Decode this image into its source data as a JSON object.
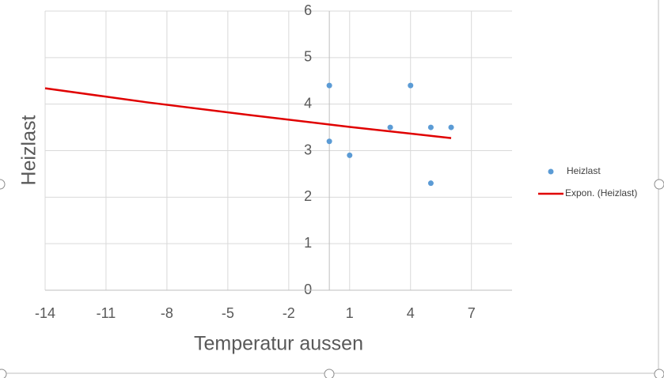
{
  "chart_data": {
    "type": "scatter",
    "x_label": "Temperatur aussen",
    "y_label": "Heizlast",
    "xlim": [
      -14,
      9
    ],
    "xticks": [
      -14,
      -11,
      -8,
      -5,
      -2,
      1,
      4,
      7
    ],
    "ylim": [
      0,
      6
    ],
    "yticks": [
      0,
      1,
      2,
      3,
      4,
      5,
      6
    ],
    "grid": true,
    "legend": "right",
    "series": [
      {
        "name": "Heizlast",
        "color": "#5b9bd5",
        "mode": "markers",
        "x": [
          0,
          0,
          1,
          3,
          4,
          5,
          5,
          6
        ],
        "values": [
          4.4,
          3.2,
          2.9,
          3.5,
          4.4,
          3.5,
          2.3,
          3.5
        ]
      },
      {
        "name": "Expon. (Heizlast)",
        "color": "#e00000",
        "mode": "line",
        "x": [
          -14,
          -9,
          -4,
          1,
          6
        ],
        "values": [
          4.34,
          4.04,
          3.77,
          3.51,
          3.27
        ]
      }
    ]
  }
}
